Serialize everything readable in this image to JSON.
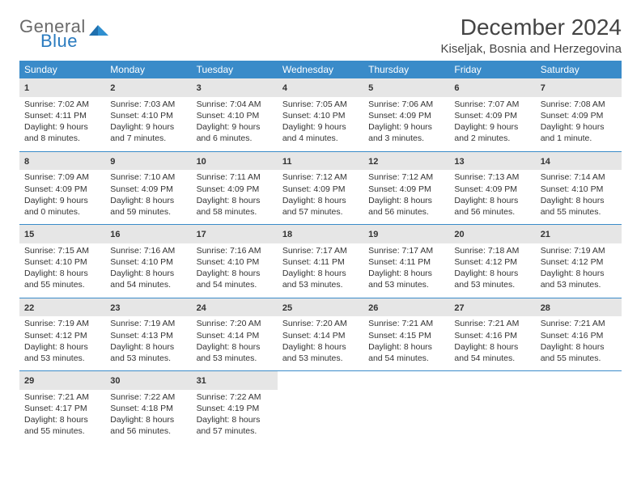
{
  "brand": {
    "part1": "General",
    "part2": "Blue"
  },
  "title": "December 2024",
  "location": "Kiseljak, Bosnia and Herzegovina",
  "colors": {
    "header_bg": "#3a8bc9",
    "rule": "#3a8bc9",
    "dayhead_bg": "#e6e6e6",
    "text": "#333333",
    "brand_gray": "#6a6a6a",
    "brand_blue": "#2a7bbf",
    "page_bg": "#ffffff"
  },
  "typography": {
    "title_fontsize": 28,
    "location_fontsize": 15,
    "header_fontsize": 12,
    "cell_fontsize": 10.5,
    "daynum_fontsize": 11
  },
  "weekdays": [
    "Sunday",
    "Monday",
    "Tuesday",
    "Wednesday",
    "Thursday",
    "Friday",
    "Saturday"
  ],
  "weeks": [
    [
      {
        "n": "1",
        "sr": "Sunrise: 7:02 AM",
        "ss": "Sunset: 4:11 PM",
        "dl": "Daylight: 9 hours and 8 minutes."
      },
      {
        "n": "2",
        "sr": "Sunrise: 7:03 AM",
        "ss": "Sunset: 4:10 PM",
        "dl": "Daylight: 9 hours and 7 minutes."
      },
      {
        "n": "3",
        "sr": "Sunrise: 7:04 AM",
        "ss": "Sunset: 4:10 PM",
        "dl": "Daylight: 9 hours and 6 minutes."
      },
      {
        "n": "4",
        "sr": "Sunrise: 7:05 AM",
        "ss": "Sunset: 4:10 PM",
        "dl": "Daylight: 9 hours and 4 minutes."
      },
      {
        "n": "5",
        "sr": "Sunrise: 7:06 AM",
        "ss": "Sunset: 4:09 PM",
        "dl": "Daylight: 9 hours and 3 minutes."
      },
      {
        "n": "6",
        "sr": "Sunrise: 7:07 AM",
        "ss": "Sunset: 4:09 PM",
        "dl": "Daylight: 9 hours and 2 minutes."
      },
      {
        "n": "7",
        "sr": "Sunrise: 7:08 AM",
        "ss": "Sunset: 4:09 PM",
        "dl": "Daylight: 9 hours and 1 minute."
      }
    ],
    [
      {
        "n": "8",
        "sr": "Sunrise: 7:09 AM",
        "ss": "Sunset: 4:09 PM",
        "dl": "Daylight: 9 hours and 0 minutes."
      },
      {
        "n": "9",
        "sr": "Sunrise: 7:10 AM",
        "ss": "Sunset: 4:09 PM",
        "dl": "Daylight: 8 hours and 59 minutes."
      },
      {
        "n": "10",
        "sr": "Sunrise: 7:11 AM",
        "ss": "Sunset: 4:09 PM",
        "dl": "Daylight: 8 hours and 58 minutes."
      },
      {
        "n": "11",
        "sr": "Sunrise: 7:12 AM",
        "ss": "Sunset: 4:09 PM",
        "dl": "Daylight: 8 hours and 57 minutes."
      },
      {
        "n": "12",
        "sr": "Sunrise: 7:12 AM",
        "ss": "Sunset: 4:09 PM",
        "dl": "Daylight: 8 hours and 56 minutes."
      },
      {
        "n": "13",
        "sr": "Sunrise: 7:13 AM",
        "ss": "Sunset: 4:09 PM",
        "dl": "Daylight: 8 hours and 56 minutes."
      },
      {
        "n": "14",
        "sr": "Sunrise: 7:14 AM",
        "ss": "Sunset: 4:10 PM",
        "dl": "Daylight: 8 hours and 55 minutes."
      }
    ],
    [
      {
        "n": "15",
        "sr": "Sunrise: 7:15 AM",
        "ss": "Sunset: 4:10 PM",
        "dl": "Daylight: 8 hours and 55 minutes."
      },
      {
        "n": "16",
        "sr": "Sunrise: 7:16 AM",
        "ss": "Sunset: 4:10 PM",
        "dl": "Daylight: 8 hours and 54 minutes."
      },
      {
        "n": "17",
        "sr": "Sunrise: 7:16 AM",
        "ss": "Sunset: 4:10 PM",
        "dl": "Daylight: 8 hours and 54 minutes."
      },
      {
        "n": "18",
        "sr": "Sunrise: 7:17 AM",
        "ss": "Sunset: 4:11 PM",
        "dl": "Daylight: 8 hours and 53 minutes."
      },
      {
        "n": "19",
        "sr": "Sunrise: 7:17 AM",
        "ss": "Sunset: 4:11 PM",
        "dl": "Daylight: 8 hours and 53 minutes."
      },
      {
        "n": "20",
        "sr": "Sunrise: 7:18 AM",
        "ss": "Sunset: 4:12 PM",
        "dl": "Daylight: 8 hours and 53 minutes."
      },
      {
        "n": "21",
        "sr": "Sunrise: 7:19 AM",
        "ss": "Sunset: 4:12 PM",
        "dl": "Daylight: 8 hours and 53 minutes."
      }
    ],
    [
      {
        "n": "22",
        "sr": "Sunrise: 7:19 AM",
        "ss": "Sunset: 4:12 PM",
        "dl": "Daylight: 8 hours and 53 minutes."
      },
      {
        "n": "23",
        "sr": "Sunrise: 7:19 AM",
        "ss": "Sunset: 4:13 PM",
        "dl": "Daylight: 8 hours and 53 minutes."
      },
      {
        "n": "24",
        "sr": "Sunrise: 7:20 AM",
        "ss": "Sunset: 4:14 PM",
        "dl": "Daylight: 8 hours and 53 minutes."
      },
      {
        "n": "25",
        "sr": "Sunrise: 7:20 AM",
        "ss": "Sunset: 4:14 PM",
        "dl": "Daylight: 8 hours and 53 minutes."
      },
      {
        "n": "26",
        "sr": "Sunrise: 7:21 AM",
        "ss": "Sunset: 4:15 PM",
        "dl": "Daylight: 8 hours and 54 minutes."
      },
      {
        "n": "27",
        "sr": "Sunrise: 7:21 AM",
        "ss": "Sunset: 4:16 PM",
        "dl": "Daylight: 8 hours and 54 minutes."
      },
      {
        "n": "28",
        "sr": "Sunrise: 7:21 AM",
        "ss": "Sunset: 4:16 PM",
        "dl": "Daylight: 8 hours and 55 minutes."
      }
    ],
    [
      {
        "n": "29",
        "sr": "Sunrise: 7:21 AM",
        "ss": "Sunset: 4:17 PM",
        "dl": "Daylight: 8 hours and 55 minutes."
      },
      {
        "n": "30",
        "sr": "Sunrise: 7:22 AM",
        "ss": "Sunset: 4:18 PM",
        "dl": "Daylight: 8 hours and 56 minutes."
      },
      {
        "n": "31",
        "sr": "Sunrise: 7:22 AM",
        "ss": "Sunset: 4:19 PM",
        "dl": "Daylight: 8 hours and 57 minutes."
      },
      null,
      null,
      null,
      null
    ]
  ]
}
